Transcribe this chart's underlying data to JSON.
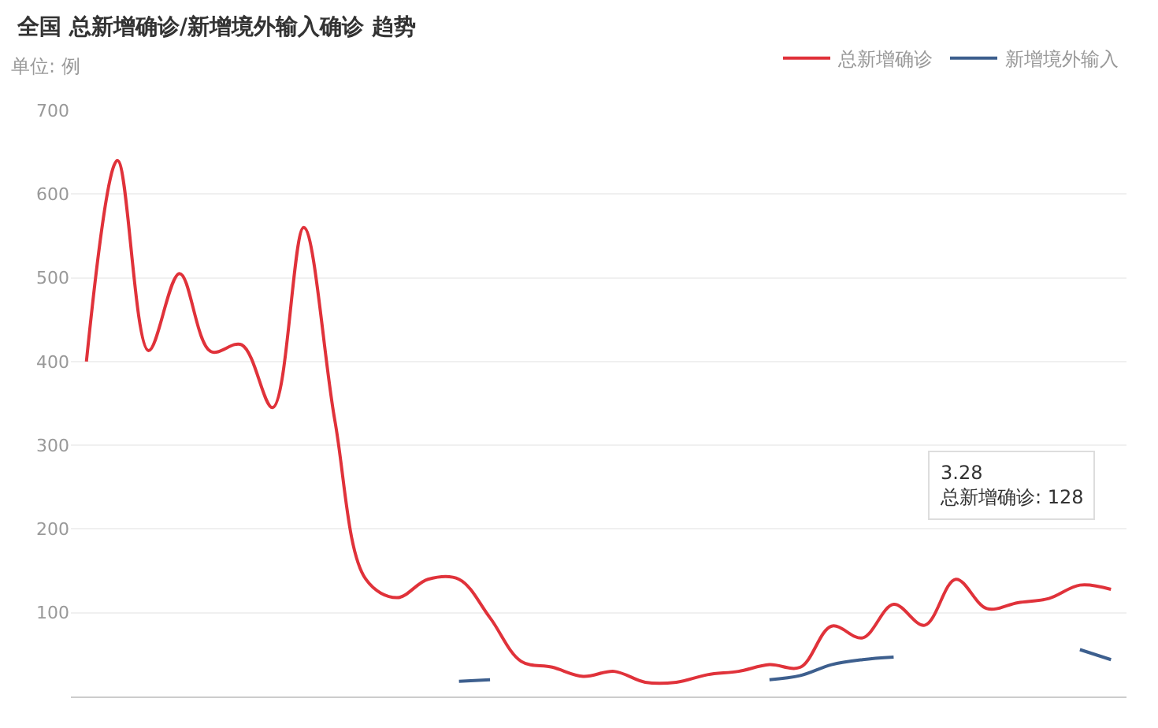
{
  "chart_data": {
    "type": "line",
    "title": "全国 总新增确诊/新增境外输入确诊 趋势",
    "subtitle": "单位: 例",
    "categories": [
      null,
      null,
      null,
      null,
      null,
      null,
      null,
      null,
      null,
      null,
      null,
      null,
      null,
      null,
      null,
      null,
      null,
      null,
      null,
      null,
      null,
      null,
      null,
      null,
      null,
      null,
      null,
      null,
      null,
      null,
      null,
      null,
      null,
      null
    ],
    "series": [
      {
        "name": "总新增确诊",
        "color": "#e0323a",
        "values": [
          400,
          640,
          413,
          505,
          412,
          420,
          345,
          560,
          330,
          140,
          118,
          140,
          140,
          94,
          42,
          35,
          24,
          30,
          17,
          17,
          26,
          30,
          38,
          35,
          84,
          70,
          110,
          85,
          140,
          105,
          112,
          117,
          133,
          128
        ]
      },
      {
        "name": "新增境外输入",
        "color": "#3d5f8e",
        "values": [
          null,
          null,
          null,
          null,
          null,
          null,
          null,
          null,
          null,
          null,
          null,
          null,
          18,
          20,
          null,
          null,
          null,
          null,
          null,
          null,
          null,
          null,
          20,
          25,
          38,
          44,
          47,
          null,
          null,
          null,
          null,
          null,
          56,
          44
        ]
      }
    ],
    "ylim": [
      0,
      700
    ],
    "yticks": [
      100,
      200,
      300,
      400,
      500,
      600,
      700
    ],
    "grid": "y",
    "legend": "top right",
    "marker": "none",
    "line_style": "solid",
    "annotations": [
      "3.28",
      "总新增确诊: 128"
    ]
  }
}
